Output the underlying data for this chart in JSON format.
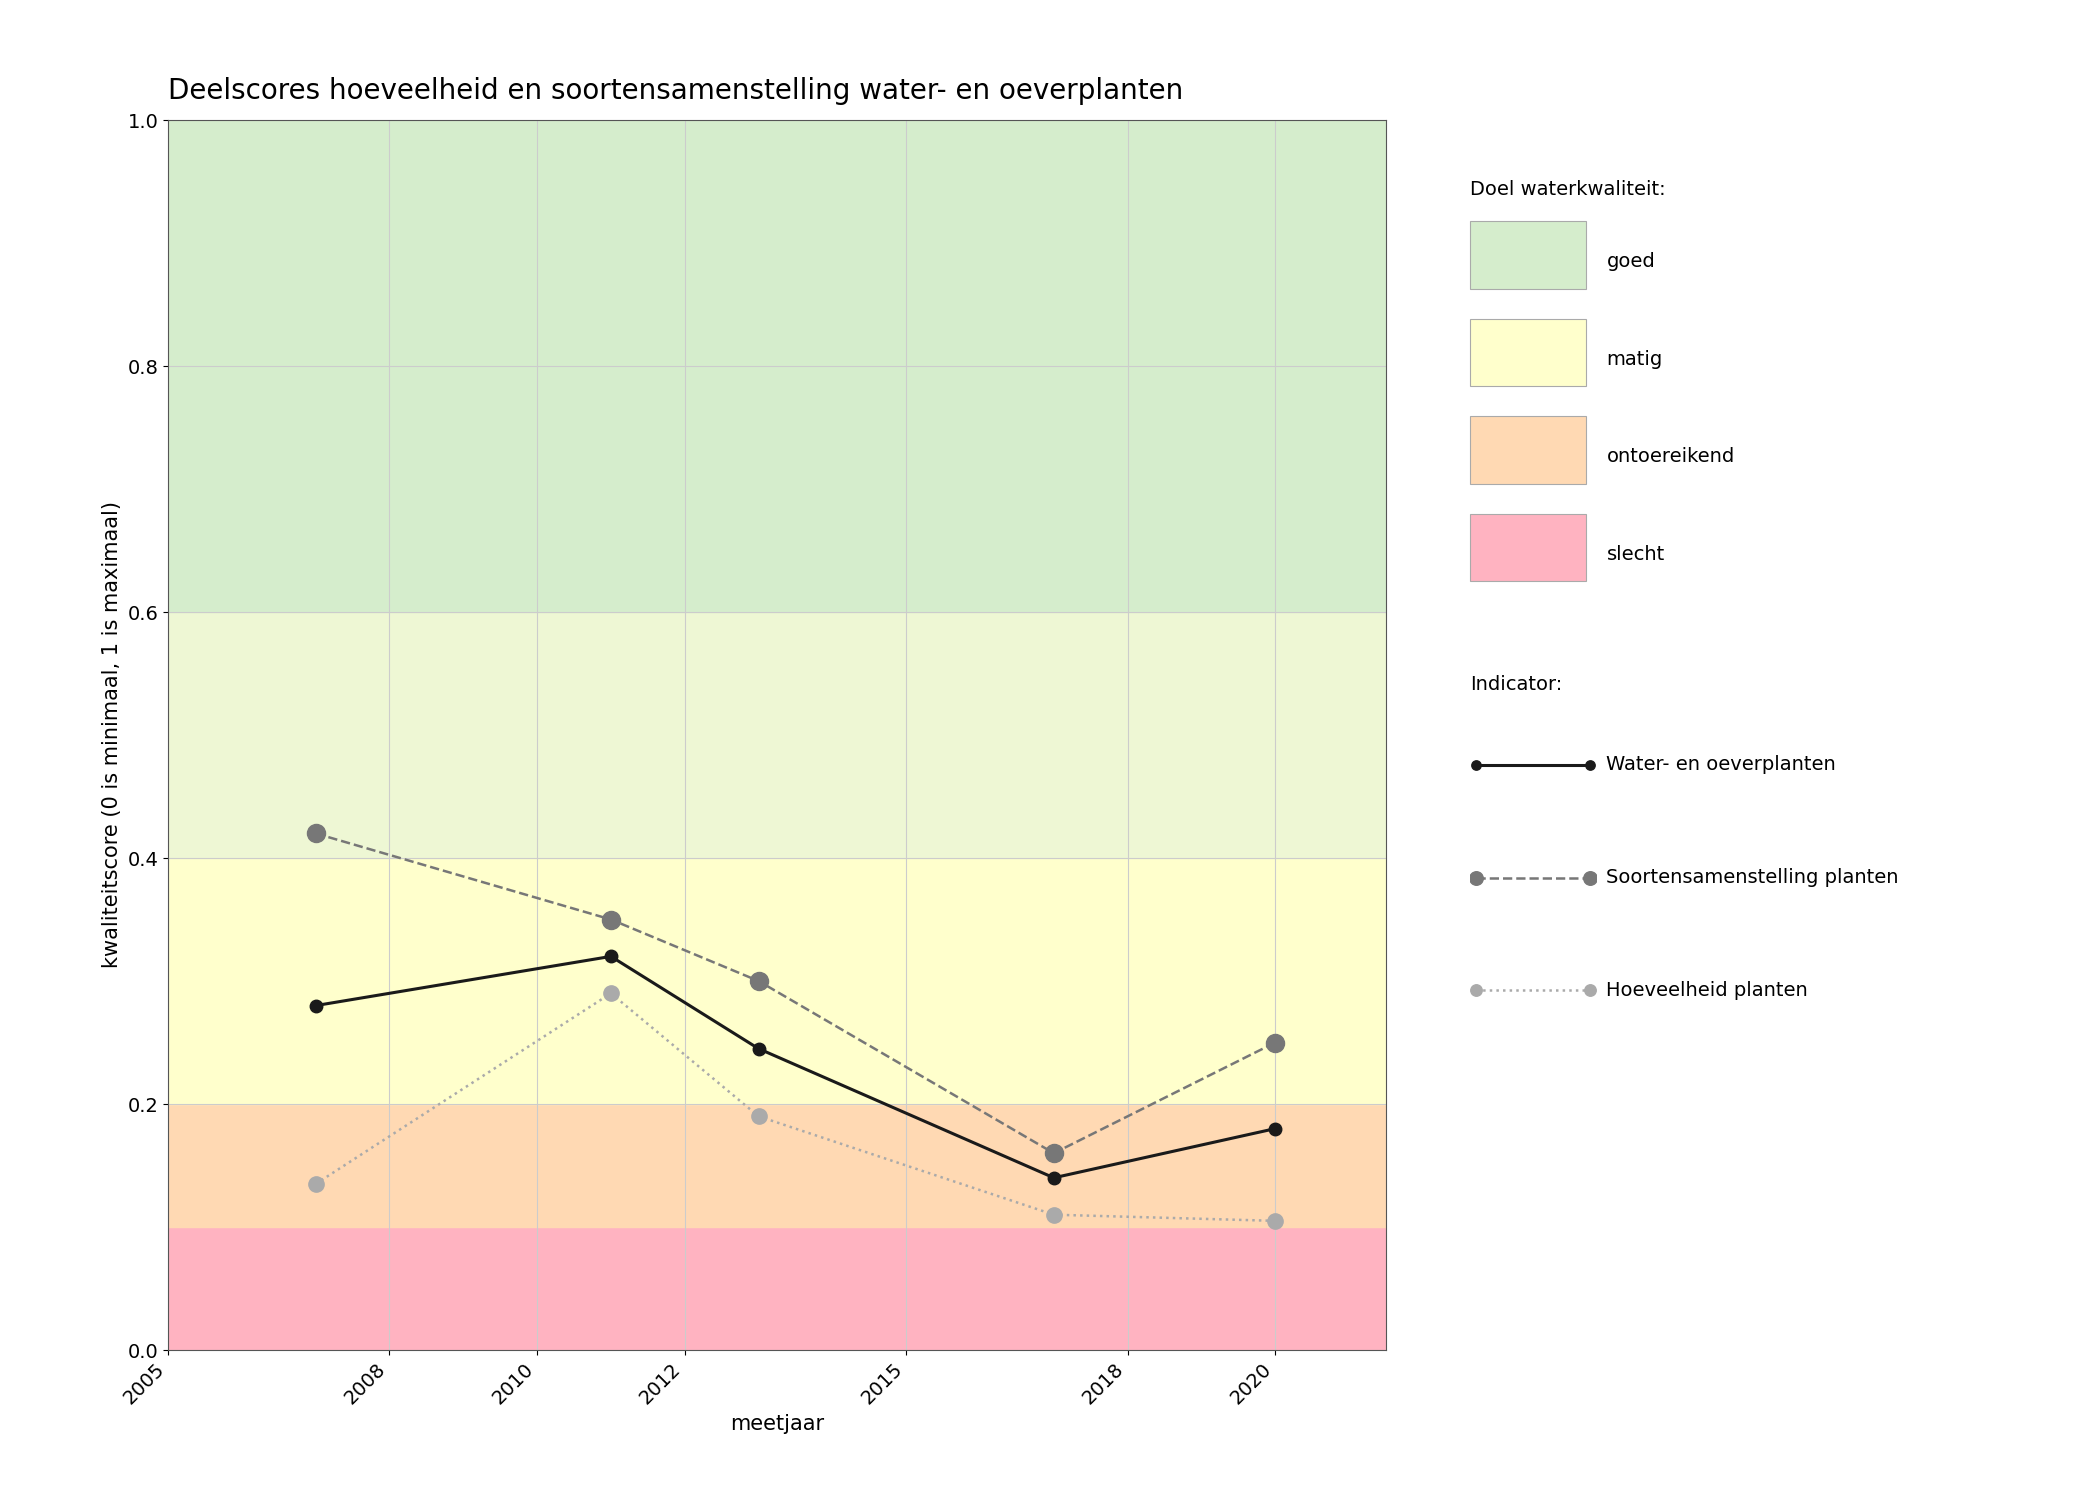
{
  "title": "Deelscores hoeveelheid en soortensamenstelling water- en oeverplanten",
  "xlabel": "meetjaar",
  "ylabel": "kwaliteitscore (0 is minimaal, 1 is maximaal)",
  "xlim": [
    2005,
    2021.5
  ],
  "ylim": [
    0.0,
    1.0
  ],
  "xticks": [
    2005,
    2008,
    2010,
    2012,
    2015,
    2018,
    2020
  ],
  "yticks": [
    0.0,
    0.2,
    0.4,
    0.6,
    0.8,
    1.0
  ],
  "background_zones": [
    {
      "ymin": 0.0,
      "ymax": 0.1,
      "color": "#ffb3c1",
      "label": "slecht"
    },
    {
      "ymin": 0.1,
      "ymax": 0.2,
      "color": "#ffd9b3",
      "label": "ontoereikend"
    },
    {
      "ymin": 0.2,
      "ymax": 0.4,
      "color": "#ffffcc",
      "label": "matig"
    },
    {
      "ymin": 0.4,
      "ymax": 0.6,
      "color": "#eef7d4",
      "label": "matig_upper"
    },
    {
      "ymin": 0.6,
      "ymax": 1.0,
      "color": "#d5edcc",
      "label": "goed"
    }
  ],
  "legend_zones": [
    {
      "color": "#d5edcc",
      "label": "goed"
    },
    {
      "color": "#ffffcc",
      "label": "matig"
    },
    {
      "color": "#ffd9b3",
      "label": "ontoereikend"
    },
    {
      "color": "#ffb3c1",
      "label": "slecht"
    }
  ],
  "series": [
    {
      "name": "Water- en oeverplanten",
      "x": [
        2007,
        2011,
        2013,
        2017,
        2020
      ],
      "y": [
        0.28,
        0.32,
        0.245,
        0.14,
        0.18
      ],
      "color": "#1a1a1a",
      "linestyle": "solid",
      "linewidth": 2.2,
      "markersize": 9,
      "marker": "o",
      "markerfacecolor": "#1a1a1a",
      "zorder": 5
    },
    {
      "name": "Soortensamenstelling planten",
      "x": [
        2007,
        2011,
        2013,
        2017,
        2020
      ],
      "y": [
        0.42,
        0.35,
        0.3,
        0.16,
        0.25
      ],
      "color": "#777777",
      "linestyle": "dashed",
      "linewidth": 1.8,
      "markersize": 13,
      "marker": "o",
      "markerfacecolor": "#777777",
      "zorder": 4
    },
    {
      "name": "Hoeveelheid planten",
      "x": [
        2007,
        2011,
        2013,
        2017,
        2020
      ],
      "y": [
        0.135,
        0.29,
        0.19,
        0.11,
        0.105
      ],
      "color": "#aaaaaa",
      "linestyle": "dotted",
      "linewidth": 1.8,
      "markersize": 11,
      "marker": "o",
      "markerfacecolor": "#aaaaaa",
      "zorder": 3
    }
  ],
  "legend_quality_title": "Doel waterkwaliteit:",
  "legend_indicator_title": "Indicator:",
  "background_color": "#ffffff",
  "grid_color": "#cccccc",
  "title_fontsize": 20,
  "label_fontsize": 15,
  "tick_fontsize": 14,
  "legend_fontsize": 14
}
